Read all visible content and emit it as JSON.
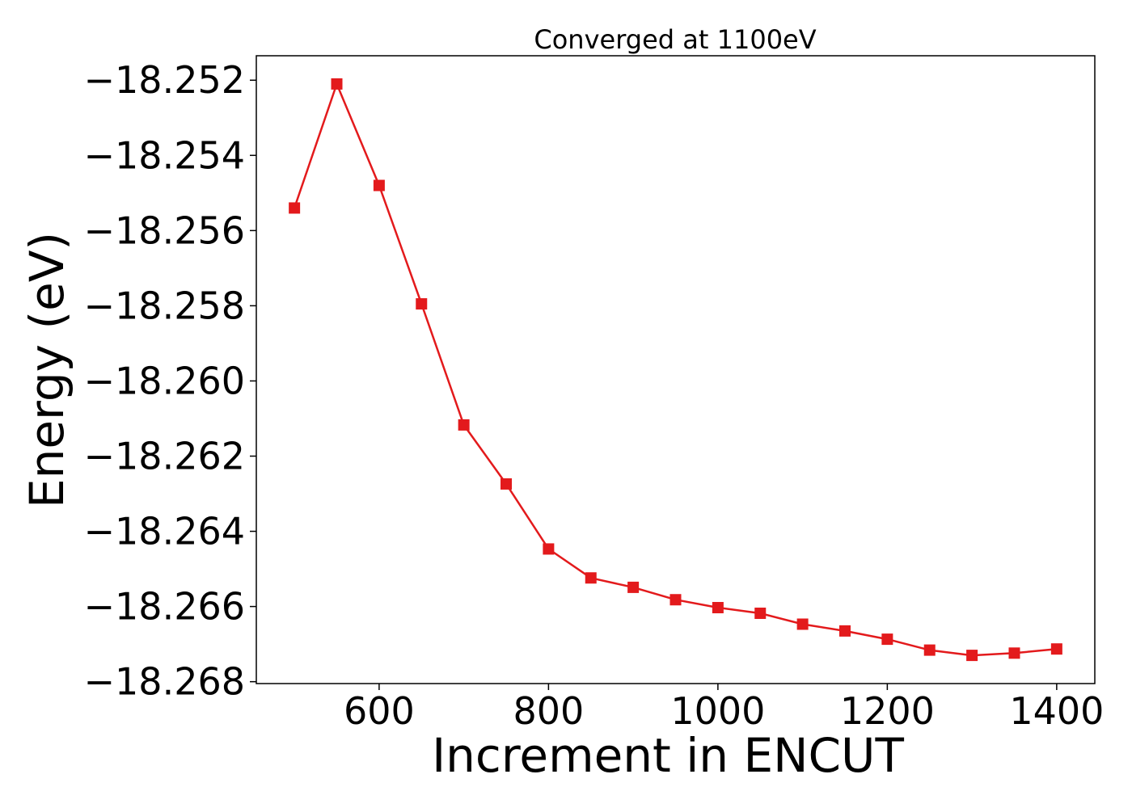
{
  "chart_data": {
    "type": "line",
    "title": "Converged at 1100eV",
    "xlabel": "Increment in ENCUT",
    "ylabel": "Energy (eV)",
    "xlim": [
      455,
      1445
    ],
    "ylim": [
      -18.26805,
      -18.25135
    ],
    "xticks": [
      600,
      800,
      1000,
      1200,
      1400
    ],
    "xtick_labels": [
      "600",
      "800",
      "1000",
      "1200",
      "1400"
    ],
    "yticks": [
      -18.252,
      -18.254,
      -18.256,
      -18.258,
      -18.26,
      -18.262,
      -18.264,
      -18.266,
      -18.268
    ],
    "ytick_labels": [
      "−18.252",
      "−18.254",
      "−18.256",
      "−18.258",
      "−18.260",
      "−18.262",
      "−18.264",
      "−18.266",
      "−18.268"
    ],
    "grid": false,
    "legend": "none",
    "marker": "square",
    "color": "#e31a1c",
    "series": [
      {
        "x": [
          500,
          550,
          600,
          650,
          700,
          750,
          800,
          850,
          900,
          950,
          1000,
          1050,
          1100,
          1150,
          1200,
          1250,
          1300,
          1350,
          1400
        ],
        "y": [
          -18.2554,
          -18.2521,
          -18.2548,
          -18.25795,
          -18.26117,
          -18.26274,
          -18.26447,
          -18.26524,
          -18.26549,
          -18.26582,
          -18.26603,
          -18.26618,
          -18.26647,
          -18.26665,
          -18.26687,
          -18.26716,
          -18.2673,
          -18.26724,
          -18.26713
        ]
      }
    ]
  }
}
